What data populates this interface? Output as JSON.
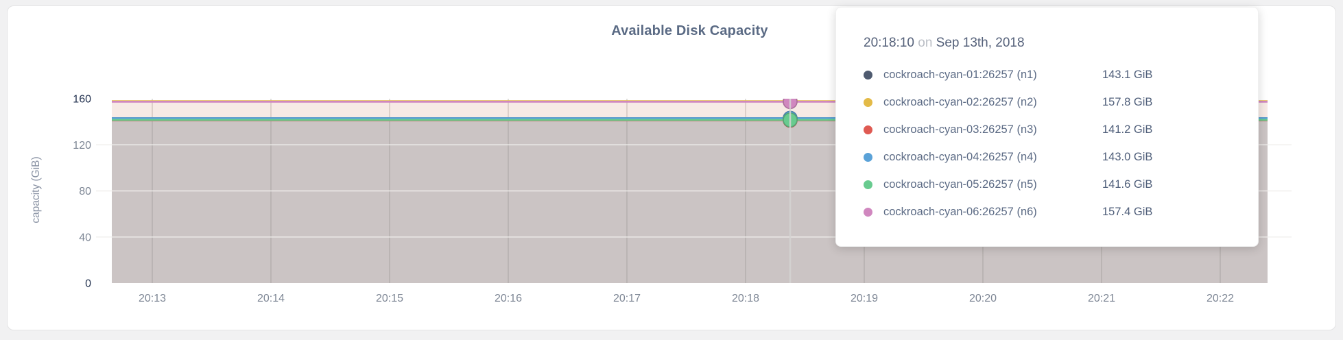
{
  "page": {
    "background_color": "#f1f1f2",
    "card_background_color": "#ffffff"
  },
  "chart_data": {
    "type": "line",
    "title": "Available Disk Capacity",
    "xlabel": "",
    "ylabel": "capacity (GiB)",
    "x_ticks": [
      "20:13",
      "20:14",
      "20:15",
      "20:16",
      "20:17",
      "20:18",
      "20:19",
      "20:20",
      "20:21",
      "20:22"
    ],
    "y_ticks": [
      0,
      40,
      80,
      120,
      160
    ],
    "ylim": [
      0,
      160
    ],
    "grid": true,
    "legend_position": "tooltip",
    "area_fill": true,
    "series": [
      {
        "name": "cockroach-cyan-01:26257 (n1)",
        "color": "#4f5b70",
        "value_gib": 143.1
      },
      {
        "name": "cockroach-cyan-02:26257 (n2)",
        "color": "#e3ba47",
        "value_gib": 157.8
      },
      {
        "name": "cockroach-cyan-03:26257 (n3)",
        "color": "#df5a52",
        "value_gib": 141.2
      },
      {
        "name": "cockroach-cyan-04:26257 (n4)",
        "color": "#5aa2d8",
        "value_gib": 143.0
      },
      {
        "name": "cockroach-cyan-05:26257 (n5)",
        "color": "#68cb8f",
        "value_gib": 141.6
      },
      {
        "name": "cockroach-cyan-06:26257 (n6)",
        "color": "#d087bf",
        "value_gib": 157.4
      }
    ],
    "hover_time": "20:18:10",
    "axis_colors": {
      "tick_label": "#7e8795",
      "tick_label_minmax": "#22314f",
      "gridline_vertical": "#d7d6d3",
      "gridline_horizontal": "#efeeec",
      "hover_guideline": "#d5d4d2"
    }
  },
  "tooltip": {
    "time": "20:18:10",
    "separator": "on",
    "date": "Sep 13th, 2018",
    "rows": [
      {
        "label": "cockroach-cyan-01:26257 (n1)",
        "value": "143.1 GiB",
        "color": "#4f5b70"
      },
      {
        "label": "cockroach-cyan-02:26257 (n2)",
        "value": "157.8 GiB",
        "color": "#e3ba47"
      },
      {
        "label": "cockroach-cyan-03:26257 (n3)",
        "value": "141.2 GiB",
        "color": "#df5a52"
      },
      {
        "label": "cockroach-cyan-04:26257 (n4)",
        "value": "143.0 GiB",
        "color": "#5aa2d8"
      },
      {
        "label": "cockroach-cyan-05:26257 (n5)",
        "value": "141.6 GiB",
        "color": "#68cb8f"
      },
      {
        "label": "cockroach-cyan-06:26257 (n6)",
        "value": "157.4 GiB",
        "color": "#d087bf"
      }
    ]
  }
}
